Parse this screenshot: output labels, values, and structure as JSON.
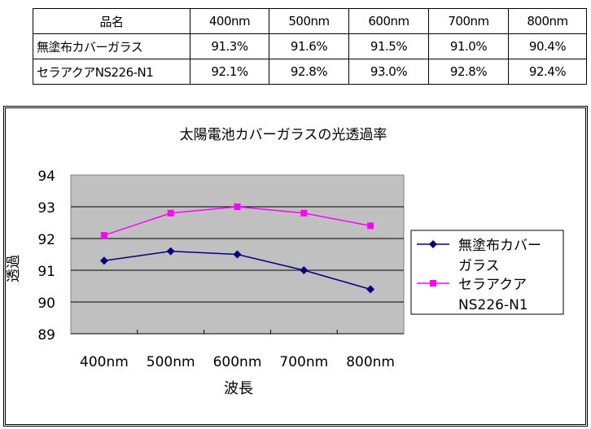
{
  "table": {
    "header": [
      "品名",
      "400nm",
      "500nm",
      "600nm",
      "700nm",
      "800nm"
    ],
    "rows": [
      [
        "無塗布カバーガラス",
        "91.3%",
        "91.6%",
        "91.5%",
        "91.0%",
        "90.4%"
      ],
      [
        "セラアクアNS226-N1",
        "92.1%",
        "92.8%",
        "93.0%",
        "92.8%",
        "92.4%"
      ]
    ]
  },
  "chart_data": {
    "type": "line",
    "title": "太陽電池カバーガラスの光透過率",
    "xlabel": "波長",
    "ylabel": "透過",
    "categories": [
      "400nm",
      "500nm",
      "600nm",
      "700nm",
      "800nm"
    ],
    "ylim": [
      89,
      94
    ],
    "yticks": [
      "89",
      "90",
      "91",
      "92",
      "93",
      "94"
    ],
    "grid": true,
    "legend_position": "right",
    "series": [
      {
        "name": "無塗布カバーガラス",
        "legend_lines": [
          "無塗布カバー",
          "ガラス"
        ],
        "values": [
          91.3,
          91.6,
          91.5,
          91.0,
          90.4
        ],
        "color": "#000080",
        "marker": "diamond"
      },
      {
        "name": "セラアクアNS226-N1",
        "legend_lines": [
          "セラアクア",
          "NS226-N1"
        ],
        "values": [
          92.1,
          92.8,
          93.0,
          92.8,
          92.4
        ],
        "color": "#FF00FF",
        "marker": "square"
      }
    ]
  }
}
